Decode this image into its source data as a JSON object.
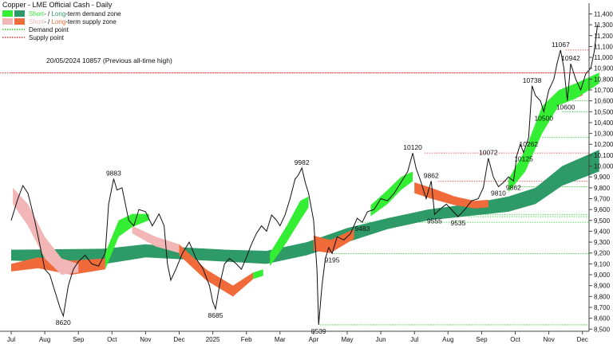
{
  "chart_data": {
    "type": "line",
    "title": "Copper - LME Official Cash - Daily",
    "ylim": [
      8480,
      11440
    ],
    "y_ticks": [
      8500,
      8600,
      8700,
      8800,
      8900,
      9000,
      9100,
      9200,
      9300,
      9400,
      9500,
      9600,
      9700,
      9800,
      9900,
      10000,
      10100,
      10200,
      10300,
      10400,
      10500,
      10600,
      10700,
      10800,
      10900,
      11000,
      11100,
      11200,
      11300,
      11400
    ],
    "x_labels": [
      "Jul",
      "Aug",
      "Sep",
      "Oct",
      "Nov",
      "Dec",
      "2025",
      "Feb",
      "Mar",
      "Apr",
      "May",
      "Jun",
      "Jul",
      "Aug",
      "Sep",
      "Oct",
      "Nov",
      "Dec"
    ],
    "legend": [
      {
        "text_a": "Short",
        "sep": "- / ",
        "text_b": "Long",
        "suffix": "-term demand zone",
        "color_a": "#33ee33",
        "color_b": "#2e9a68",
        "kind": "swatch"
      },
      {
        "text_a": "Short",
        "sep": "- / ",
        "text_b": "Long",
        "suffix": "-term supply zone",
        "color_a": "#f2b6b6",
        "color_b": "#f06a3a",
        "kind": "swatch"
      },
      {
        "text_a": "",
        "sep": "",
        "text_b": "",
        "suffix": "Demand point",
        "color_a": "#22cc22",
        "color_b": "",
        "kind": "dotted"
      },
      {
        "text_a": "",
        "sep": "",
        "text_b": "",
        "suffix": "Supply point",
        "color_a": "#dd3333",
        "color_b": "",
        "kind": "dotted"
      }
    ],
    "reference_note": "20/05/2024 10857 (Previous all-time high)",
    "reference_level": 10857,
    "supply_points": [
      {
        "value": 10857,
        "t0": 0,
        "t1": 18.2
      },
      {
        "value": 11067,
        "t0": 16.5,
        "t1": 18.2
      },
      {
        "value": 10120,
        "t0": 12.3,
        "t1": 18.2
      },
      {
        "value": 9862,
        "t0": 12.7,
        "t1": 18.2
      }
    ],
    "demand_points": [
      {
        "value": 10600,
        "t0": 16.7,
        "t1": 18.2
      },
      {
        "value": 10500,
        "t0": 16.4,
        "t1": 18.2
      },
      {
        "value": 10262,
        "t0": 15.8,
        "t1": 18.2
      },
      {
        "value": 9810,
        "t0": 14.9,
        "t1": 18.2
      },
      {
        "value": 9555,
        "t0": 12.9,
        "t1": 18.2
      },
      {
        "value": 9535,
        "t0": 13.6,
        "t1": 18.2
      },
      {
        "value": 9483,
        "t0": 10.3,
        "t1": 18.2
      },
      {
        "value": 9195,
        "t0": 9.6,
        "t1": 18.2
      },
      {
        "value": 8539,
        "t0": 9.2,
        "t1": 18.2
      }
    ],
    "annotations": [
      {
        "text": "9883",
        "t": 3.05,
        "v": 9883,
        "pos": "above"
      },
      {
        "text": "8620",
        "t": 1.55,
        "v": 8620,
        "pos": "below"
      },
      {
        "text": "8685",
        "t": 6.08,
        "v": 8685,
        "pos": "below"
      },
      {
        "text": "9982",
        "t": 8.65,
        "v": 9982,
        "pos": "above"
      },
      {
        "text": "8539",
        "t": 9.15,
        "v": 8539,
        "pos": "below"
      },
      {
        "text": "9195",
        "t": 9.55,
        "v": 9195,
        "pos": "below"
      },
      {
        "text": "9483",
        "t": 10.45,
        "v": 9483,
        "pos": "below"
      },
      {
        "text": "10120",
        "t": 11.95,
        "v": 10120,
        "pos": "above"
      },
      {
        "text": "9862",
        "t": 12.5,
        "v": 9862,
        "pos": "above"
      },
      {
        "text": "9555",
        "t": 12.6,
        "v": 9555,
        "pos": "below"
      },
      {
        "text": "9535",
        "t": 13.3,
        "v": 9535,
        "pos": "below"
      },
      {
        "text": "10072",
        "t": 14.2,
        "v": 10072,
        "pos": "above"
      },
      {
        "text": "9810",
        "t": 14.5,
        "v": 9810,
        "pos": "below"
      },
      {
        "text": "9862",
        "t": 14.95,
        "v": 9862,
        "pos": "below"
      },
      {
        "text": "10125",
        "t": 15.25,
        "v": 10125,
        "pos": "below"
      },
      {
        "text": "10262",
        "t": 15.4,
        "v": 10262,
        "pos": "below"
      },
      {
        "text": "10738",
        "t": 15.5,
        "v": 10738,
        "pos": "above"
      },
      {
        "text": "10500",
        "t": 15.85,
        "v": 10500,
        "pos": "below"
      },
      {
        "text": "11067",
        "t": 16.35,
        "v": 11067,
        "pos": "above"
      },
      {
        "text": "10942",
        "t": 16.65,
        "v": 10942,
        "pos": "above"
      },
      {
        "text": "10600",
        "t": 16.5,
        "v": 10600,
        "pos": "below"
      }
    ],
    "price": [
      [
        0,
        9500
      ],
      [
        0.2,
        9700
      ],
      [
        0.35,
        9820
      ],
      [
        0.5,
        9750
      ],
      [
        0.7,
        9500
      ],
      [
        0.85,
        9280
      ],
      [
        1.0,
        9050
      ],
      [
        1.15,
        9000
      ],
      [
        1.3,
        8850
      ],
      [
        1.45,
        8700
      ],
      [
        1.55,
        8620
      ],
      [
        1.7,
        8900
      ],
      [
        1.85,
        9050
      ],
      [
        2.0,
        9120
      ],
      [
        2.2,
        9180
      ],
      [
        2.4,
        9100
      ],
      [
        2.6,
        9080
      ],
      [
        2.8,
        9200
      ],
      [
        2.9,
        9650
      ],
      [
        3.05,
        9883
      ],
      [
        3.15,
        9780
      ],
      [
        3.3,
        9800
      ],
      [
        3.5,
        9500
      ],
      [
        3.65,
        9450
      ],
      [
        3.8,
        9600
      ],
      [
        4.0,
        9580
      ],
      [
        4.2,
        9450
      ],
      [
        4.4,
        9560
      ],
      [
        4.55,
        9450
      ],
      [
        4.65,
        9100
      ],
      [
        4.75,
        8950
      ],
      [
        4.9,
        9050
      ],
      [
        5.1,
        9200
      ],
      [
        5.3,
        9300
      ],
      [
        5.5,
        9150
      ],
      [
        5.7,
        9060
      ],
      [
        5.9,
        8900
      ],
      [
        6.0,
        8750
      ],
      [
        6.08,
        8685
      ],
      [
        6.2,
        8900
      ],
      [
        6.35,
        9100
      ],
      [
        6.5,
        9150
      ],
      [
        6.7,
        9100
      ],
      [
        6.85,
        9050
      ],
      [
        7.0,
        9160
      ],
      [
        7.15,
        9280
      ],
      [
        7.3,
        9380
      ],
      [
        7.45,
        9450
      ],
      [
        7.6,
        9400
      ],
      [
        7.75,
        9550
      ],
      [
        7.9,
        9500
      ],
      [
        8.0,
        9450
      ],
      [
        8.15,
        9550
      ],
      [
        8.3,
        9700
      ],
      [
        8.45,
        9880
      ],
      [
        8.55,
        9920
      ],
      [
        8.65,
        9982
      ],
      [
        8.75,
        9850
      ],
      [
        8.85,
        9750
      ],
      [
        9.0,
        9500
      ],
      [
        9.1,
        9050
      ],
      [
        9.15,
        8539
      ],
      [
        9.25,
        8900
      ],
      [
        9.35,
        9150
      ],
      [
        9.45,
        9250
      ],
      [
        9.55,
        9195
      ],
      [
        9.7,
        9350
      ],
      [
        9.9,
        9320
      ],
      [
        10.1,
        9380
      ],
      [
        10.3,
        9520
      ],
      [
        10.45,
        9483
      ],
      [
        10.6,
        9580
      ],
      [
        10.8,
        9600
      ],
      [
        11.0,
        9700
      ],
      [
        11.2,
        9680
      ],
      [
        11.4,
        9750
      ],
      [
        11.6,
        9850
      ],
      [
        11.8,
        9950
      ],
      [
        11.95,
        10120
      ],
      [
        12.05,
        9980
      ],
      [
        12.2,
        9850
      ],
      [
        12.35,
        9700
      ],
      [
        12.5,
        9862
      ],
      [
        12.6,
        9555
      ],
      [
        12.75,
        9600
      ],
      [
        12.95,
        9650
      ],
      [
        13.1,
        9600
      ],
      [
        13.3,
        9535
      ],
      [
        13.5,
        9600
      ],
      [
        13.7,
        9680
      ],
      [
        13.9,
        9700
      ],
      [
        14.05,
        9800
      ],
      [
        14.2,
        10072
      ],
      [
        14.35,
        9900
      ],
      [
        14.5,
        9810
      ],
      [
        14.65,
        9850
      ],
      [
        14.8,
        9900
      ],
      [
        14.95,
        9862
      ],
      [
        15.05,
        10100
      ],
      [
        15.15,
        10200
      ],
      [
        15.25,
        10125
      ],
      [
        15.4,
        10262
      ],
      [
        15.5,
        10738
      ],
      [
        15.6,
        10650
      ],
      [
        15.75,
        10600
      ],
      [
        15.85,
        10500
      ],
      [
        16.0,
        10700
      ],
      [
        16.15,
        10800
      ],
      [
        16.25,
        10950
      ],
      [
        16.35,
        11067
      ],
      [
        16.45,
        10900
      ],
      [
        16.55,
        10600
      ],
      [
        16.65,
        10942
      ],
      [
        16.8,
        10800
      ],
      [
        16.95,
        10700
      ],
      [
        17.1,
        10850
      ],
      [
        17.25,
        10900
      ],
      [
        17.35,
        11050
      ],
      [
        17.45,
        11300
      ]
    ],
    "long_demand_upper": [
      [
        0,
        9230
      ],
      [
        2.8,
        9240
      ],
      [
        4.0,
        9280
      ],
      [
        5.2,
        9250
      ],
      [
        6.4,
        9230
      ],
      [
        7.6,
        9220
      ],
      [
        8.8,
        9300
      ],
      [
        10.0,
        9430
      ],
      [
        11.2,
        9520
      ],
      [
        12.4,
        9600
      ],
      [
        13.6,
        9650
      ],
      [
        14.8,
        9720
      ],
      [
        15.6,
        9800
      ],
      [
        16.4,
        10000
      ],
      [
        17.5,
        10150
      ]
    ],
    "long_demand_lower": [
      [
        0,
        9130
      ],
      [
        2.8,
        9100
      ],
      [
        4.0,
        9160
      ],
      [
        5.2,
        9140
      ],
      [
        6.4,
        9120
      ],
      [
        7.6,
        9100
      ],
      [
        8.8,
        9180
      ],
      [
        10.0,
        9300
      ],
      [
        11.2,
        9420
      ],
      [
        12.4,
        9500
      ],
      [
        13.6,
        9540
      ],
      [
        14.8,
        9580
      ],
      [
        15.6,
        9650
      ],
      [
        16.4,
        9820
      ],
      [
        17.5,
        9950
      ]
    ],
    "short_demand_zones": [
      {
        "upper": [
          [
            2.8,
            9200
          ],
          [
            3.2,
            9500
          ],
          [
            3.6,
            9560
          ],
          [
            4.1,
            9560
          ]
        ],
        "lower": [
          [
            2.8,
            9050
          ],
          [
            3.2,
            9350
          ],
          [
            3.6,
            9440
          ],
          [
            4.1,
            9500
          ]
        ]
      },
      {
        "upper": [
          [
            7.2,
            9020
          ],
          [
            7.5,
            9050
          ]
        ],
        "lower": [
          [
            7.2,
            8960
          ],
          [
            7.5,
            8990
          ]
        ]
      },
      {
        "upper": [
          [
            7.7,
            9200
          ],
          [
            8.2,
            9450
          ],
          [
            8.6,
            9680
          ],
          [
            8.85,
            9720
          ]
        ],
        "lower": [
          [
            7.7,
            9080
          ],
          [
            8.2,
            9300
          ],
          [
            8.6,
            9500
          ],
          [
            8.85,
            9620
          ]
        ]
      },
      {
        "upper": [
          [
            10.7,
            9640
          ],
          [
            11.2,
            9780
          ],
          [
            11.6,
            9900
          ],
          [
            11.95,
            9950
          ]
        ],
        "lower": [
          [
            10.7,
            9540
          ],
          [
            11.2,
            9650
          ],
          [
            11.6,
            9780
          ],
          [
            11.95,
            9860
          ]
        ]
      },
      {
        "upper": [
          [
            14.8,
            9880
          ],
          [
            15.3,
            10150
          ],
          [
            15.8,
            10550
          ],
          [
            16.3,
            10700
          ],
          [
            16.8,
            10760
          ],
          [
            17.5,
            10860
          ]
        ],
        "lower": [
          [
            14.8,
            9760
          ],
          [
            15.3,
            9950
          ],
          [
            15.8,
            10300
          ],
          [
            16.3,
            10560
          ],
          [
            16.8,
            10620
          ],
          [
            17.5,
            10760
          ]
        ]
      }
    ],
    "long_supply_zones": [
      {
        "upper": [
          [
            0,
            9100
          ],
          [
            0.8,
            9160
          ],
          [
            1.8,
            9130
          ],
          [
            2.8,
            9150
          ]
        ],
        "lower": [
          [
            0,
            9030
          ],
          [
            0.8,
            9060
          ],
          [
            1.8,
            9000
          ],
          [
            2.8,
            9050
          ]
        ]
      },
      {
        "upper": [
          [
            5.0,
            9280
          ],
          [
            5.8,
            9050
          ],
          [
            6.6,
            8900
          ],
          [
            7.2,
            9020
          ]
        ],
        "lower": [
          [
            5.0,
            9180
          ],
          [
            5.8,
            8950
          ],
          [
            6.6,
            8800
          ],
          [
            7.2,
            8960
          ]
        ]
      },
      {
        "upper": [
          [
            9.0,
            9360
          ],
          [
            9.5,
            9320
          ],
          [
            10.2,
            9420
          ]
        ],
        "lower": [
          [
            9.0,
            9220
          ],
          [
            9.5,
            9200
          ],
          [
            10.2,
            9330
          ]
        ]
      },
      {
        "upper": [
          [
            12.0,
            9850
          ],
          [
            12.5,
            9800
          ],
          [
            13.2,
            9720
          ],
          [
            13.8,
            9680
          ],
          [
            14.2,
            9690
          ]
        ],
        "lower": [
          [
            12.0,
            9750
          ],
          [
            12.5,
            9700
          ],
          [
            13.2,
            9640
          ],
          [
            13.8,
            9610
          ],
          [
            14.2,
            9620
          ]
        ]
      },
      {
        "upper": [
          [
            16.6,
            10700
          ],
          [
            17.0,
            10750
          ]
        ],
        "lower": [
          [
            16.6,
            10600
          ],
          [
            17.0,
            10650
          ]
        ]
      }
    ],
    "short_supply_zones": [
      {
        "upper": [
          [
            0.05,
            9800
          ],
          [
            0.5,
            9650
          ],
          [
            1.0,
            9350
          ],
          [
            1.5,
            9150
          ],
          [
            2.0,
            9100
          ]
        ],
        "lower": [
          [
            0.05,
            9650
          ],
          [
            0.5,
            9450
          ],
          [
            1.0,
            9150
          ],
          [
            1.5,
            9000
          ],
          [
            2.0,
            9020
          ]
        ]
      },
      {
        "upper": [
          [
            3.6,
            9450
          ],
          [
            4.3,
            9350
          ],
          [
            5.0,
            9280
          ]
        ],
        "lower": [
          [
            3.6,
            9380
          ],
          [
            4.3,
            9260
          ],
          [
            5.0,
            9200
          ]
        ]
      }
    ]
  }
}
